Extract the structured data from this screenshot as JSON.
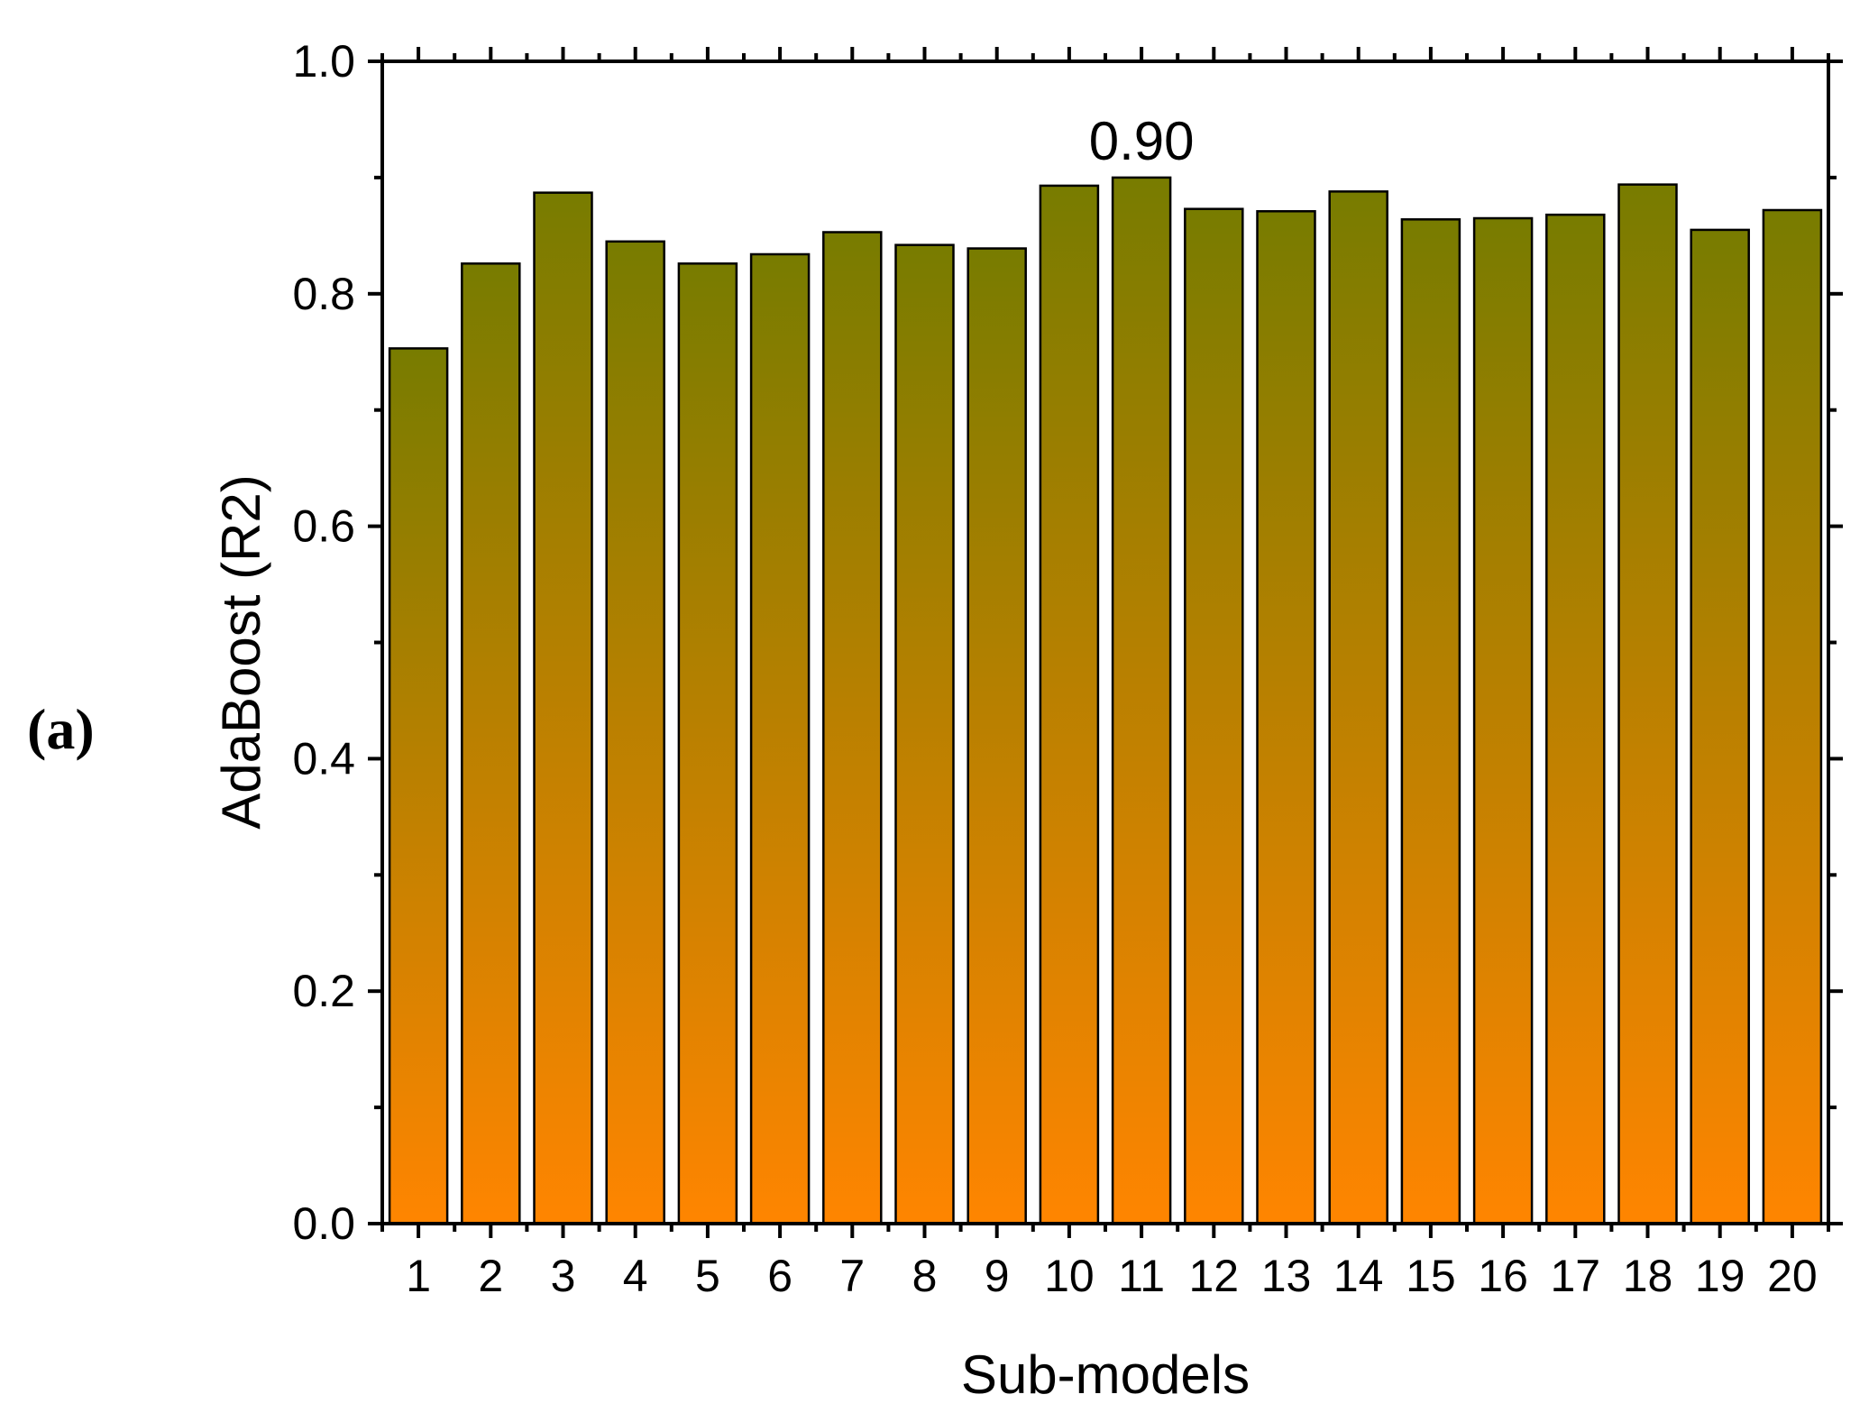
{
  "panel_label": "(a)",
  "chart_data": {
    "type": "bar",
    "categories": [
      "1",
      "2",
      "3",
      "4",
      "5",
      "6",
      "7",
      "8",
      "9",
      "10",
      "11",
      "12",
      "13",
      "14",
      "15",
      "16",
      "17",
      "18",
      "19",
      "20"
    ],
    "values": [
      0.753,
      0.826,
      0.887,
      0.845,
      0.826,
      0.834,
      0.853,
      0.842,
      0.839,
      0.893,
      0.9,
      0.873,
      0.871,
      0.888,
      0.864,
      0.865,
      0.868,
      0.894,
      0.855,
      0.872
    ],
    "xlabel": "Sub-models",
    "ylabel": "AdaBoost (R2)",
    "ylim": [
      0,
      1.0
    ],
    "yticks": [
      "0.0",
      "0.2",
      "0.4",
      "0.6",
      "0.8",
      "1.0"
    ],
    "annotations": [
      {
        "category": "11",
        "text": "0.90"
      }
    ],
    "colors": {
      "bar_top": "#787c00",
      "bar_bottom": "#ff8500",
      "bar_edge": "#000000"
    },
    "grid": false,
    "legend": "none"
  }
}
